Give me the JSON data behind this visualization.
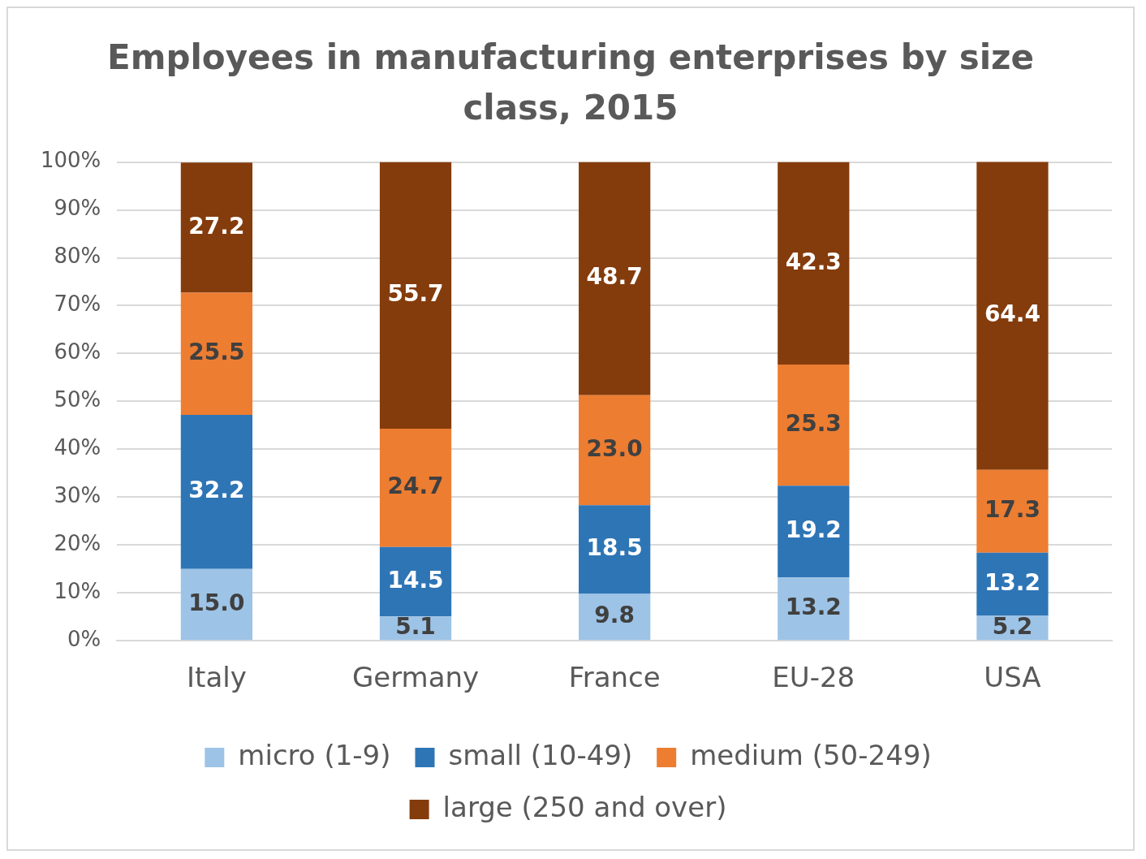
{
  "chart_data": {
    "type": "bar",
    "title": "Employees in manufacturing enterprises by size class, 2015",
    "categories": [
      "Italy",
      "Germany",
      "France",
      "EU-28",
      "USA"
    ],
    "series": [
      {
        "name": "micro (1-9)",
        "color": "#9dc3e6",
        "values": [
          15.0,
          5.1,
          9.8,
          13.2,
          5.2
        ],
        "value_labels": [
          "15.0",
          "5.1",
          "9.8",
          "13.2",
          "5.2"
        ]
      },
      {
        "name": "small (10-49)",
        "color": "#2e75b6",
        "values": [
          32.2,
          14.5,
          18.5,
          19.2,
          13.2
        ],
        "value_labels": [
          "32.2",
          "14.5",
          "18.5",
          "19.2",
          "13.2"
        ]
      },
      {
        "name": "medium (50-249)",
        "color": "#ed7d31",
        "values": [
          25.5,
          24.7,
          23.0,
          25.3,
          17.3
        ],
        "value_labels": [
          "25.5",
          "24.7",
          "23.0",
          "25.3",
          "17.3"
        ]
      },
      {
        "name": "large (250 and over)",
        "color": "#843c0c",
        "values": [
          27.2,
          55.7,
          48.7,
          42.3,
          64.4
        ],
        "value_labels": [
          "27.2",
          "55.7",
          "48.7",
          "42.3",
          "64.4"
        ]
      }
    ],
    "stacked": true,
    "ylim": [
      0,
      100
    ],
    "yticks": [
      {
        "value": 0,
        "label": "0%"
      },
      {
        "value": 10,
        "label": "10%"
      },
      {
        "value": 20,
        "label": "20%"
      },
      {
        "value": 30,
        "label": "30%"
      },
      {
        "value": 40,
        "label": "40%"
      },
      {
        "value": 50,
        "label": "50%"
      },
      {
        "value": 60,
        "label": "60%"
      },
      {
        "value": 70,
        "label": "70%"
      },
      {
        "value": 80,
        "label": "80%"
      },
      {
        "value": 90,
        "label": "90%"
      },
      {
        "value": 100,
        "label": "100%"
      }
    ],
    "grid": "y",
    "legend": "bottom"
  }
}
